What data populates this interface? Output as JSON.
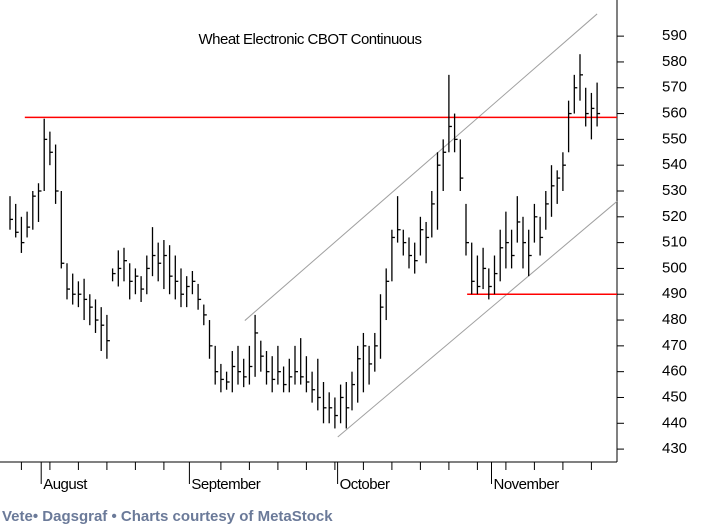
{
  "chart_data": {
    "type": "hlc",
    "title": "Wheat Electronic CBOT Continuous",
    "categories": [
      null,
      null,
      null,
      null,
      null,
      null,
      "August",
      null,
      null,
      null,
      null,
      null,
      null,
      null,
      null,
      null,
      null,
      null,
      null,
      null,
      null,
      null,
      null,
      null,
      null,
      null,
      null,
      null,
      null,
      null,
      null,
      null,
      "September",
      null,
      null,
      null,
      null,
      null,
      null,
      null,
      null,
      null,
      null,
      null,
      null,
      null,
      null,
      null,
      null,
      null,
      null,
      null,
      null,
      null,
      null,
      null,
      null,
      null,
      "October",
      null,
      null,
      null,
      null,
      null,
      null,
      null,
      null,
      null,
      null,
      null,
      null,
      null,
      null,
      null,
      null,
      null,
      null,
      null,
      null,
      null,
      null,
      null,
      null,
      null,
      null,
      "November",
      null,
      null,
      null,
      null,
      null,
      null,
      null,
      null,
      null,
      null,
      null,
      null,
      null,
      null,
      null,
      null,
      null,
      null
    ],
    "high": [
      528,
      525,
      520,
      522,
      530,
      533,
      558,
      553,
      548,
      530,
      502,
      498,
      495,
      496,
      490,
      488,
      485,
      482,
      500,
      507,
      508,
      502,
      500,
      497,
      505,
      516,
      510,
      511,
      509,
      505,
      500,
      497,
      499,
      494,
      486,
      480,
      470,
      463,
      460,
      468,
      470,
      465,
      470,
      482,
      472,
      468,
      466,
      470,
      462,
      465,
      470,
      473,
      466,
      460,
      465,
      456,
      452,
      450,
      455,
      456,
      460,
      470,
      475,
      470,
      475,
      490,
      500,
      515,
      528,
      515,
      512,
      510,
      520,
      518,
      530,
      545,
      550,
      575,
      560,
      550,
      525,
      510,
      505,
      508,
      500,
      505,
      515,
      522,
      515,
      528,
      520,
      515,
      525,
      520,
      530,
      540,
      538,
      545,
      565,
      575,
      583,
      570,
      568,
      572
    ],
    "low": [
      515,
      512,
      506,
      512,
      515,
      518,
      530,
      540,
      525,
      500,
      488,
      486,
      485,
      480,
      478,
      475,
      468,
      465,
      495,
      493,
      495,
      488,
      490,
      487,
      490,
      497,
      495,
      492,
      490,
      488,
      485,
      485,
      490,
      484,
      478,
      465,
      455,
      452,
      453,
      452,
      455,
      454,
      455,
      458,
      460,
      455,
      452,
      455,
      452,
      452,
      455,
      455,
      452,
      448,
      445,
      440,
      440,
      438,
      440,
      438,
      445,
      448,
      452,
      455,
      460,
      465,
      480,
      495,
      510,
      505,
      500,
      498,
      505,
      502,
      512,
      515,
      530,
      545,
      545,
      530,
      505,
      490,
      490,
      492,
      488,
      490,
      495,
      500,
      500,
      510,
      500,
      497,
      510,
      505,
      515,
      520,
      525,
      530,
      545,
      560,
      565,
      555,
      550,
      555
    ],
    "close": [
      519,
      514,
      510,
      516,
      528,
      530,
      550,
      545,
      530,
      502,
      492,
      490,
      490,
      488,
      485,
      480,
      478,
      472,
      498,
      500,
      503,
      495,
      497,
      492,
      500,
      505,
      502,
      505,
      497,
      495,
      490,
      493,
      495,
      488,
      482,
      470,
      460,
      457,
      456,
      462,
      460,
      458,
      462,
      475,
      466,
      460,
      457,
      460,
      455,
      458,
      460,
      458,
      456,
      453,
      450,
      446,
      446,
      443,
      450,
      446,
      455,
      465,
      470,
      463,
      470,
      485,
      495,
      512,
      515,
      510,
      505,
      503,
      515,
      512,
      525,
      540,
      545,
      555,
      550,
      535,
      510,
      495,
      493,
      500,
      493,
      498,
      508,
      510,
      505,
      518,
      510,
      505,
      520,
      512,
      525,
      532,
      535,
      540,
      560,
      570,
      575,
      560,
      562,
      560
    ],
    "color": "#000000",
    "ylim": [
      425,
      604
    ],
    "yticks": [
      430,
      440,
      450,
      460,
      470,
      480,
      490,
      500,
      510,
      520,
      530,
      540,
      550,
      560,
      570,
      580,
      590
    ],
    "hlines": [
      {
        "value": 558.5,
        "from": 2.6,
        "color": "#ff0000"
      },
      {
        "value": 490,
        "from": 80.2,
        "color": "#ff0000"
      }
    ],
    "trendlines": [
      {
        "from": [
          41.2,
          479.8
        ],
        "to": [
          103,
          598.6
        ],
        "color": "#a0a0a0"
      },
      {
        "from": [
          57.5,
          434.7
        ],
        "to": [
          106.5,
          526
        ],
        "color": "#a0a0a0"
      }
    ]
  },
  "footer": "Vete• Dagsgraf • Charts courtesy of MetaStock"
}
